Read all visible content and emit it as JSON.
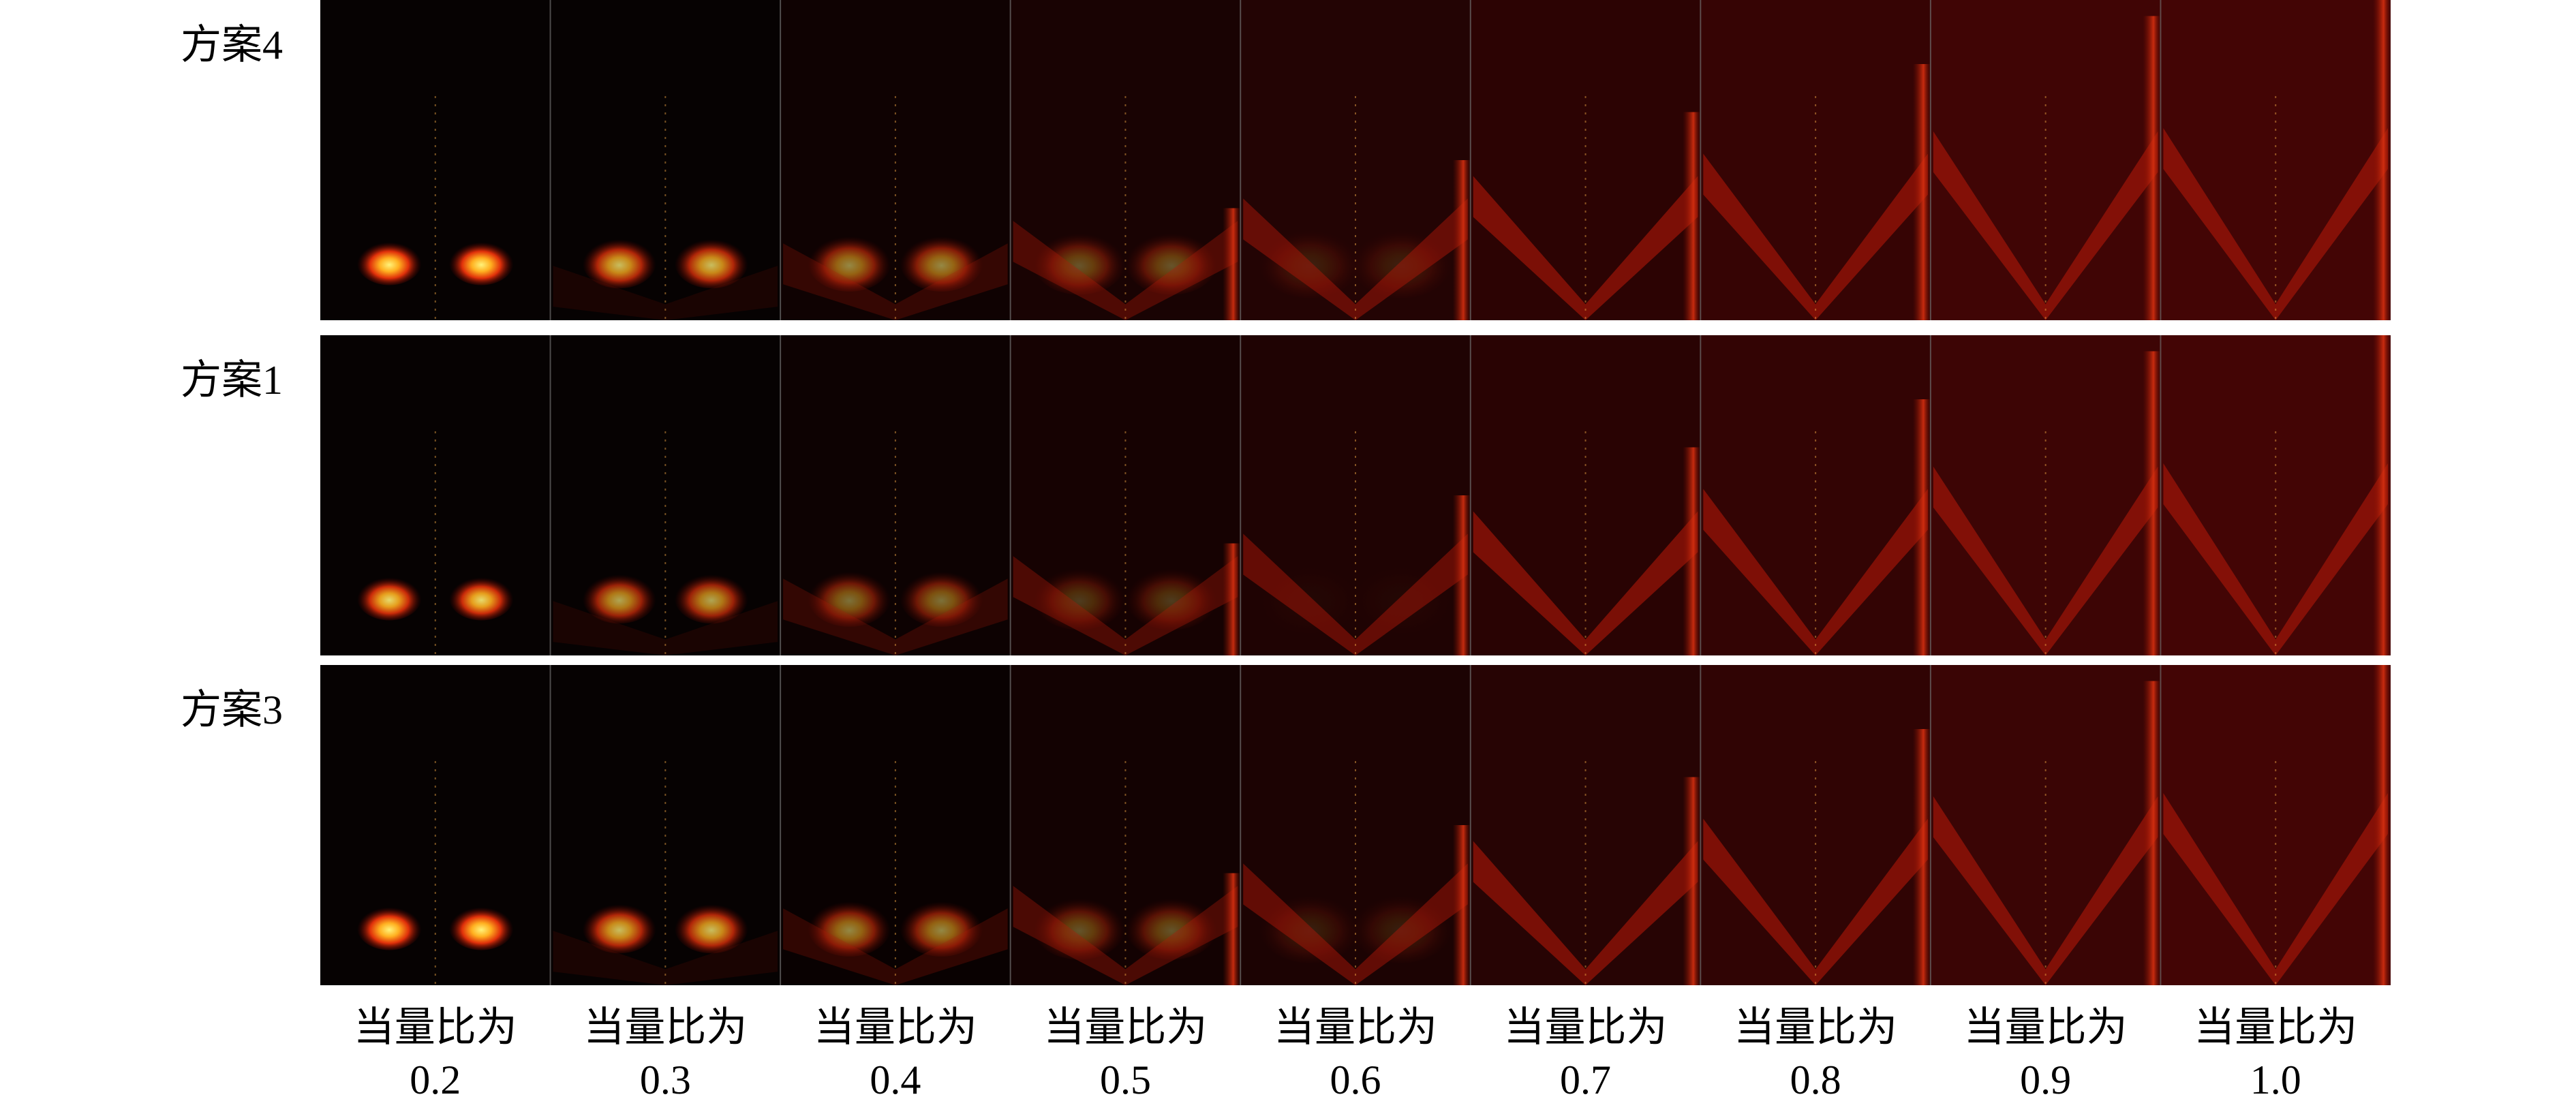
{
  "rows": [
    {
      "label": "方案4"
    },
    {
      "label": "方案1"
    },
    {
      "label": "方案3"
    }
  ],
  "columns": [
    {
      "caption": "当量比为",
      "value": "0.2"
    },
    {
      "caption": "当量比为",
      "value": "0.3"
    },
    {
      "caption": "当量比为",
      "value": "0.4"
    },
    {
      "caption": "当量比为",
      "value": "0.5"
    },
    {
      "caption": "当量比为",
      "value": "0.6"
    },
    {
      "caption": "当量比为",
      "value": "0.7"
    },
    {
      "caption": "当量比为",
      "value": "0.8"
    },
    {
      "caption": "当量比为",
      "value": "0.9"
    },
    {
      "caption": "当量比为",
      "value": "1.0"
    }
  ]
}
